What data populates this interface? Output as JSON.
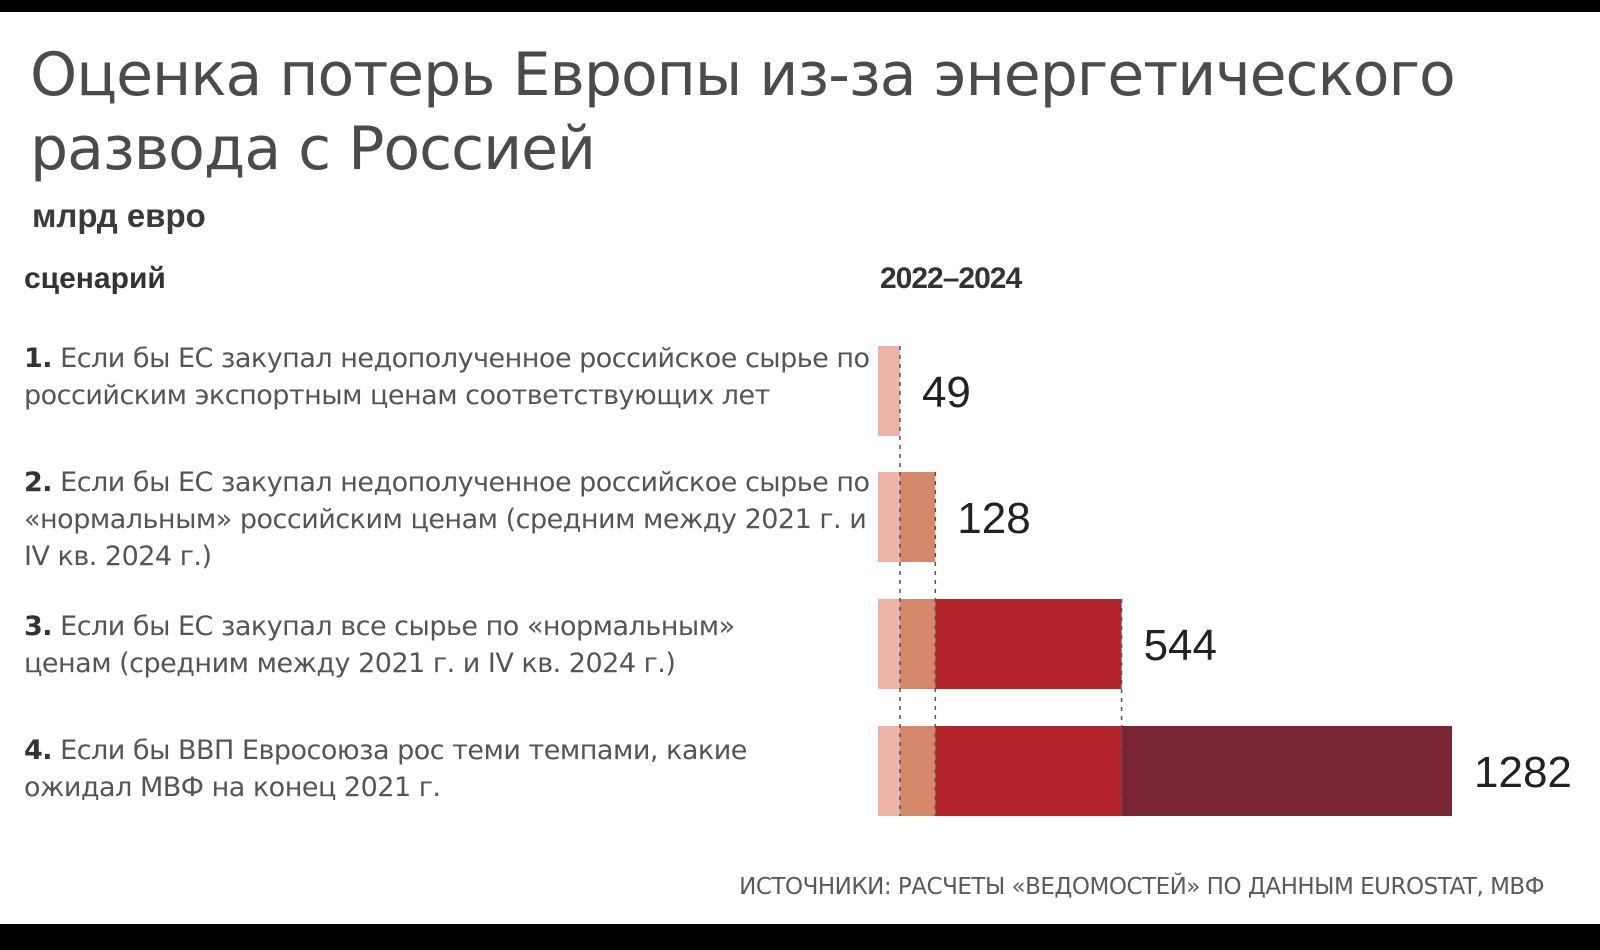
{
  "title": "Оценка потерь Европы из-за энергетического развода с Россией",
  "units": "млрд евро",
  "column_headers": {
    "scenario": "сценарий",
    "period": "2022–2024"
  },
  "scenarios": [
    {
      "number": "1.",
      "text": "Если бы ЕС закупал недополученное российское сырье по российским экспортным ценам соответствующих лет"
    },
    {
      "number": "2.",
      "text": "Если бы ЕС закупал недополученное российское сырье по «нормальным» российским ценам (средним между 2021 г. и IV кв. 2024 г.)"
    },
    {
      "number": "3.",
      "text": "Если бы ЕС закупал все сырье по «нормальным» ценам (средним между 2021 г. и IV кв. 2024 г.)"
    },
    {
      "number": "4.",
      "text": "Если бы ВВП Евросоюза рос теми темпами, какие ожидал МВФ на конец 2021 г."
    }
  ],
  "source": "ИСТОЧНИКИ: РАСЧЕТЫ «ВЕДОМОСТЕЙ» ПО ДАННЫМ EUROSTAT, МВФ",
  "colors": {
    "segment1": "#eeb3a8",
    "segment2": "#d4876a",
    "segment3": "#b5242b",
    "segment4": "#7a2535",
    "divider": "#555555"
  },
  "chart_data": {
    "type": "bar",
    "orientation": "horizontal",
    "stacked_cumulative": true,
    "categories": [
      "1",
      "2",
      "3",
      "4"
    ],
    "values": [
      49,
      128,
      544,
      1282
    ],
    "segment_boundaries": [
      49,
      128,
      544,
      1282
    ],
    "data_labels": [
      "49",
      "128",
      "544",
      "1282"
    ],
    "title": "Оценка потерь Европы из-за энергетического развода с Россией",
    "xlabel": "2022–2024",
    "ylabel": "",
    "xlim": [
      0,
      1282
    ],
    "grid": false,
    "legend": "none"
  }
}
